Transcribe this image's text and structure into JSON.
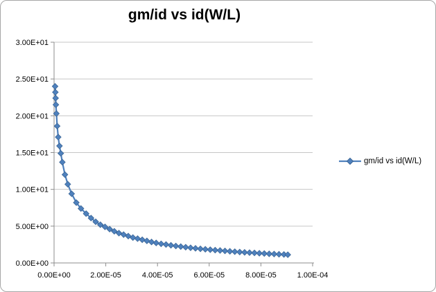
{
  "chart_data": {
    "type": "line",
    "title": "gm/id vs id(W/L)",
    "xlabel": "",
    "ylabel": "",
    "xlim": [
      0,
      0.0001
    ],
    "ylim": [
      0,
      30
    ],
    "grid": "horizontal",
    "legend_position": "right",
    "colors": {
      "series": "#4f81bd",
      "marker_edge": "#3a6596",
      "gridline": "#c6c6c6",
      "axis": "#8c8c8c",
      "text": "#000000",
      "chart_border": "#a6a6a6",
      "background": "#ffffff"
    },
    "x_ticks": [
      {
        "value": 0,
        "label": "0.00E+00"
      },
      {
        "value": 2e-05,
        "label": "2.00E-05"
      },
      {
        "value": 4e-05,
        "label": "4.00E-05"
      },
      {
        "value": 6e-05,
        "label": "6.00E-05"
      },
      {
        "value": 8e-05,
        "label": "8.00E-05"
      },
      {
        "value": 0.0001,
        "label": "1.00E-04"
      }
    ],
    "y_ticks": [
      {
        "value": 0,
        "label": "0.00E+00"
      },
      {
        "value": 5,
        "label": "5.00E+00"
      },
      {
        "value": 10,
        "label": "1.00E+01"
      },
      {
        "value": 15,
        "label": "1.50E+01"
      },
      {
        "value": 20,
        "label": "2.00E+01"
      },
      {
        "value": 25,
        "label": "2.50E+01"
      },
      {
        "value": 30,
        "label": "3.00E+01"
      }
    ],
    "series": [
      {
        "name": "gm/id vs id(W/L)",
        "marker": "diamond",
        "points": [
          [
            4e-07,
            24.0
          ],
          [
            5e-07,
            23.2
          ],
          [
            6e-07,
            22.4
          ],
          [
            7e-07,
            21.5
          ],
          [
            9e-07,
            20.3
          ],
          [
            1.2e-06,
            18.6
          ],
          [
            1.6e-06,
            17.1
          ],
          [
            2.1e-06,
            15.9
          ],
          [
            2.6e-06,
            14.9
          ],
          [
            3.2e-06,
            13.7
          ],
          [
            4.2e-06,
            12.0
          ],
          [
            5.3e-06,
            10.7
          ],
          [
            6.8e-06,
            9.4
          ],
          [
            8.6e-06,
            8.2
          ],
          [
            1.04e-05,
            7.4
          ],
          [
            1.24e-05,
            6.7
          ],
          [
            1.43e-05,
            6.1
          ],
          [
            1.61e-05,
            5.6
          ],
          [
            1.79e-05,
            5.2
          ],
          [
            1.97e-05,
            4.9
          ],
          [
            2.15e-05,
            4.6
          ],
          [
            2.33e-05,
            4.3
          ],
          [
            2.51e-05,
            4.05
          ],
          [
            2.69e-05,
            3.85
          ],
          [
            2.87e-05,
            3.65
          ],
          [
            3.05e-05,
            3.45
          ],
          [
            3.23e-05,
            3.3
          ],
          [
            3.41e-05,
            3.15
          ],
          [
            3.59e-05,
            3.0
          ],
          [
            3.77e-05,
            2.85
          ],
          [
            3.95e-05,
            2.72
          ],
          [
            4.14e-05,
            2.6
          ],
          [
            4.33e-05,
            2.5
          ],
          [
            4.52e-05,
            2.4
          ],
          [
            4.71e-05,
            2.3
          ],
          [
            4.9e-05,
            2.22
          ],
          [
            5.09e-05,
            2.14
          ],
          [
            5.28e-05,
            2.06
          ],
          [
            5.47e-05,
            1.99
          ],
          [
            5.66e-05,
            1.92
          ],
          [
            5.85e-05,
            1.86
          ],
          [
            6.04e-05,
            1.8
          ],
          [
            6.23e-05,
            1.74
          ],
          [
            6.42e-05,
            1.69
          ],
          [
            6.61e-05,
            1.63
          ],
          [
            6.8e-05,
            1.58
          ],
          [
            6.99e-05,
            1.53
          ],
          [
            7.18e-05,
            1.48
          ],
          [
            7.37e-05,
            1.44
          ],
          [
            7.56e-05,
            1.4
          ],
          [
            7.75e-05,
            1.36
          ],
          [
            7.94e-05,
            1.32
          ],
          [
            8.13e-05,
            1.28
          ],
          [
            8.32e-05,
            1.24
          ],
          [
            8.51e-05,
            1.21
          ],
          [
            8.7e-05,
            1.18
          ],
          [
            8.89e-05,
            1.15
          ],
          [
            9.04e-05,
            1.12
          ]
        ]
      }
    ]
  }
}
